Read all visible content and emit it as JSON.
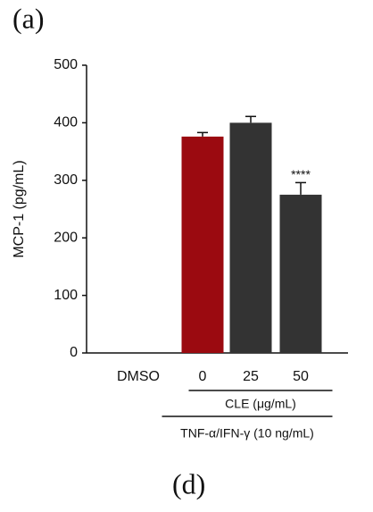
{
  "panel_labels": [
    "(a)",
    "(d)"
  ],
  "chart_data": {
    "type": "bar",
    "ylabel": "MCP-1 (pg/mL)",
    "categories": [
      "DMSO",
      "0",
      "25",
      "50"
    ],
    "values": [
      0,
      376,
      400,
      275
    ],
    "errors": [
      null,
      7,
      11,
      21
    ],
    "colors": [
      "#333333",
      "#9b0a10",
      "#333333",
      "#333333"
    ],
    "ylim": [
      0,
      500
    ],
    "yticks": [
      0,
      100,
      200,
      300,
      400,
      500
    ],
    "annotations": [
      {
        "text": "****",
        "category": 3
      }
    ],
    "groups": [
      {
        "label": "CLE (μg/mL)",
        "from": 1,
        "to": 3
      },
      {
        "label": "TNF-α/IFN-γ (10 ng/mL)",
        "from": 1,
        "to": 3
      }
    ]
  }
}
